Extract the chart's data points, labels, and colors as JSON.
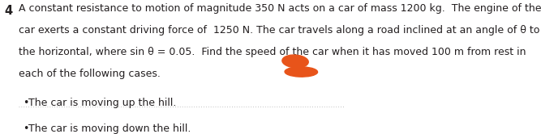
{
  "question_number": "4",
  "main_text_line1": "A constant resistance to motion of magnitude 350 N acts on a car of mass 1200 kg.  The engine of the",
  "main_text_line2": "car exerts a constant driving force of  1250 N. The car travels along a road inclined at an angle of θ to",
  "main_text_line3": "the horizontal, where sin θ = 0.05.  Find the speed of the car when it has moved 100 m from rest in",
  "main_text_line4": "each of the following cases.",
  "bullet1": "The car is moving up the hill.",
  "bullet2": "The car is moving down the hill.",
  "bg_color": "#ffffff",
  "text_color": "#231f20",
  "font_size": 9.0,
  "question_font_size": 10.5,
  "blob_color": "#e8541a"
}
